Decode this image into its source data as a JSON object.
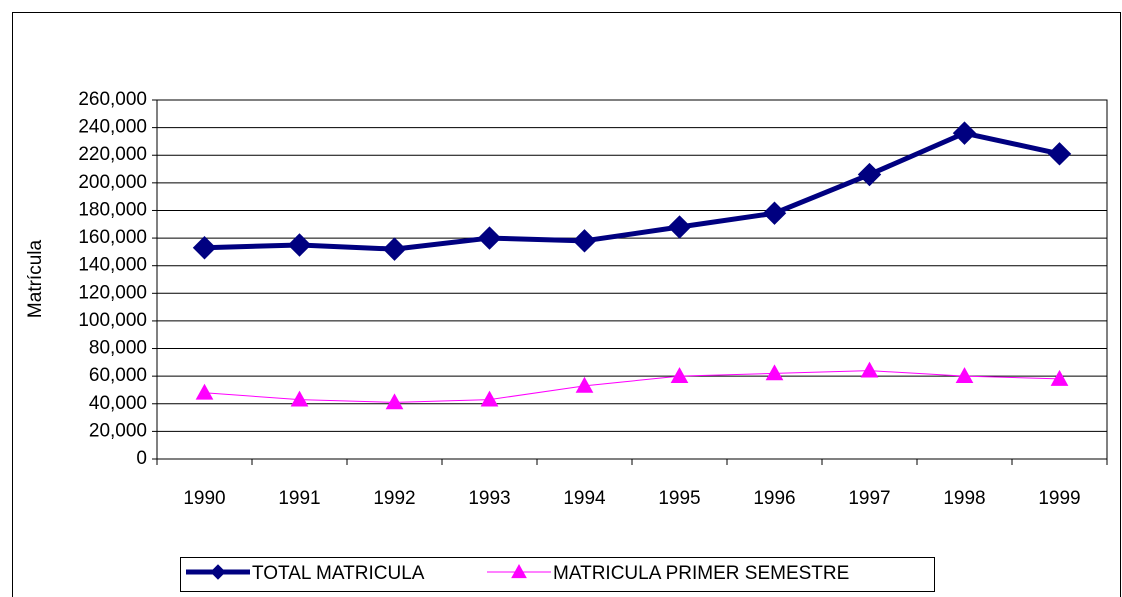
{
  "chart_data": {
    "type": "line",
    "y_label": "Matrícula",
    "categories": [
      "1990",
      "1991",
      "1992",
      "1993",
      "1994",
      "1995",
      "1996",
      "1997",
      "1998",
      "1999"
    ],
    "series": [
      {
        "name": "TOTAL MATRICULA",
        "color": "#000080",
        "marker": "diamond",
        "line_width": 5,
        "values": [
          153000,
          155000,
          152000,
          160000,
          158000,
          168000,
          178000,
          206000,
          236000,
          221000
        ]
      },
      {
        "name": "MATRICULA PRIMER SEMESTRE",
        "color": "#ff00ff",
        "marker": "triangle",
        "line_width": 1,
        "values": [
          48000,
          43000,
          41000,
          43000,
          53000,
          60000,
          62000,
          64000,
          60000,
          58000
        ]
      }
    ],
    "ylim": [
      0,
      260000
    ],
    "yticks": [
      0,
      {
        "value": 20000,
        "label": "20,000"
      },
      {
        "value": 40000,
        "label": "40,000"
      },
      {
        "value": 60000,
        "label": "60,000"
      },
      {
        "value": 80000,
        "label": "80,000"
      },
      {
        "value": 100000,
        "label": "100,000"
      },
      {
        "value": 120000,
        "label": "120,000"
      },
      {
        "value": 140000,
        "label": "140,000"
      },
      {
        "value": 160000,
        "label": "160,000"
      },
      {
        "value": 180000,
        "label": "180,000"
      },
      {
        "value": 200000,
        "label": "200,000"
      },
      {
        "value": 220000,
        "label": "220,000"
      },
      {
        "value": 240000,
        "label": "240,000"
      },
      {
        "value": 260000,
        "label": "260,000"
      }
    ],
    "grid": true
  }
}
